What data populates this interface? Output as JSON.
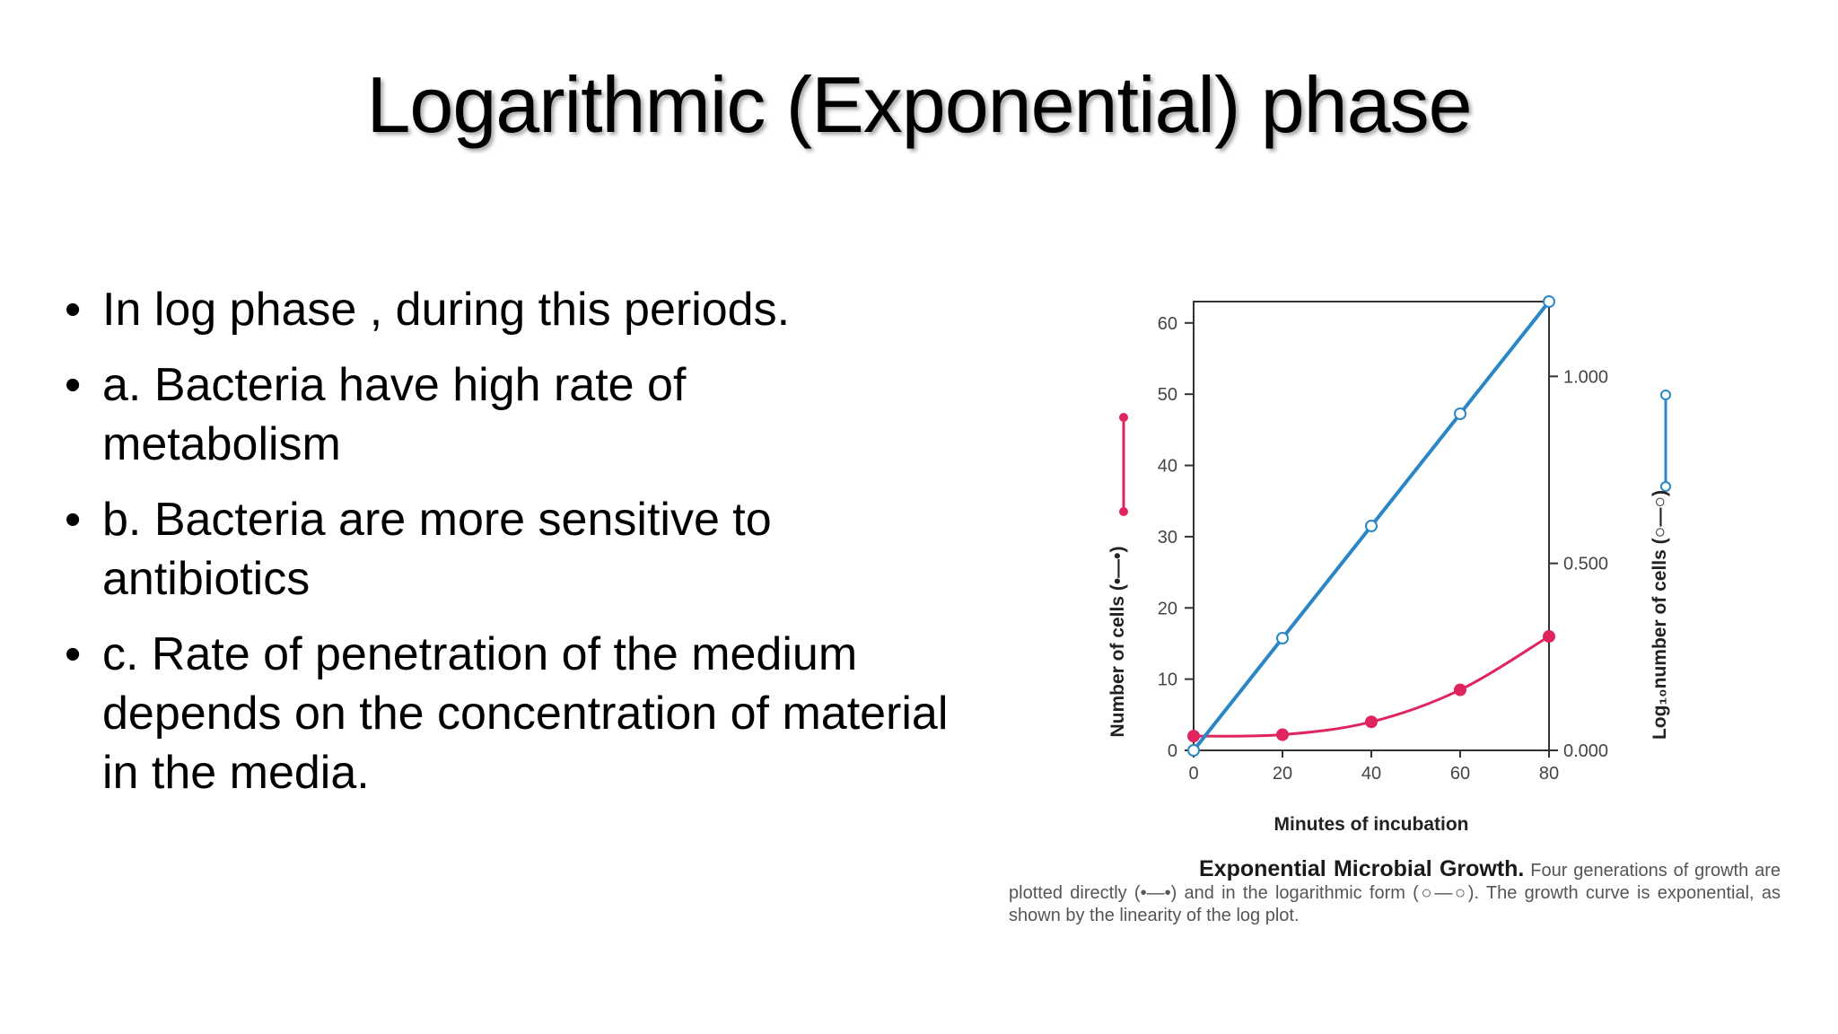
{
  "slide": {
    "title": "Logarithmic (Exponential) phase",
    "bullets": [
      "In log phase , during this periods.",
      "a. Bacteria have high rate of metabolism",
      "b. Bacteria are more sensitive to antibiotics",
      "c. Rate of penetration of the medium depends on the concentration of material in the media."
    ]
  },
  "caption": {
    "title": "Exponential Microbial Growth.",
    "text": "Four generations of growth are plotted directly (•—•) and in the logarithmic form (○—○). The growth curve is exponential, as shown by the linearity of the log plot."
  },
  "chart_data": {
    "type": "line",
    "xlabel": "Minutes of incubation",
    "ylabel_left": "Number of cells (•—•)",
    "ylabel_right": "Log₁₀number of cells (○—○)",
    "x": [
      0,
      20,
      40,
      60,
      80
    ],
    "x_ticks": [
      "0",
      "20",
      "40",
      "60",
      "80"
    ],
    "y_left_ticks": [
      "0",
      "10",
      "20",
      "30",
      "40",
      "50",
      "60"
    ],
    "y_left_lim": [
      0,
      63
    ],
    "y_right_ticks": [
      "0.000",
      "0.500",
      "1.000"
    ],
    "y_right_lim": [
      0,
      1.2
    ],
    "series": [
      {
        "axis": "left",
        "color": "#e0245e",
        "marker": "filled",
        "values": [
          2,
          2.2,
          4,
          8.5,
          16
        ]
      },
      {
        "axis": "right",
        "color": "#2a86c6",
        "marker": "open",
        "values": [
          0.0,
          0.3,
          0.6,
          0.9,
          1.2
        ]
      }
    ],
    "colors": {
      "direct": "#e0245e",
      "log": "#2a86c6"
    }
  }
}
